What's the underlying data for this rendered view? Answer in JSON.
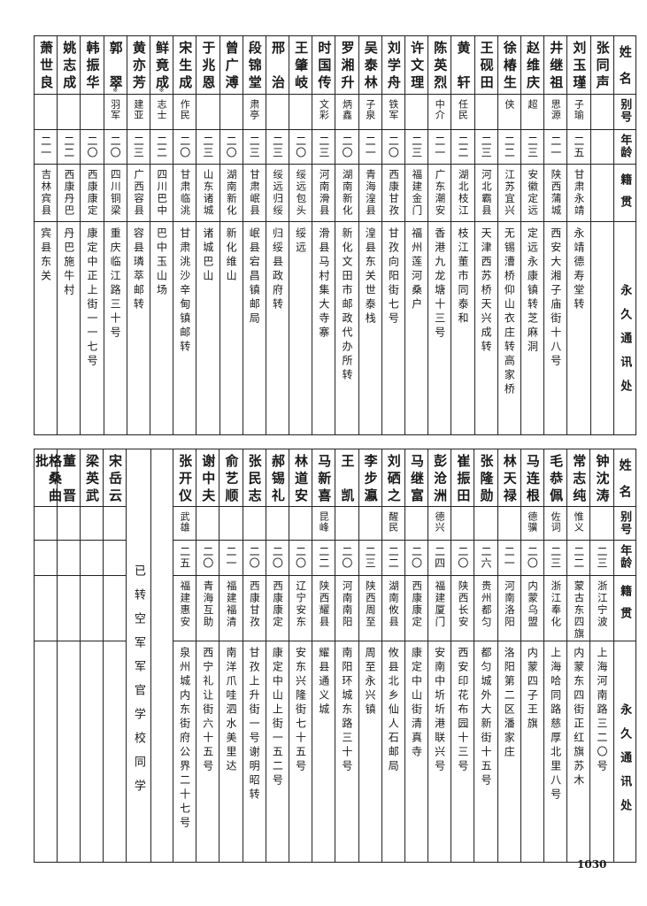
{
  "headers": {
    "name": "姓名",
    "alias": "别号",
    "age": "年龄",
    "native": "籍贯",
    "address": "永久通讯处"
  },
  "top": {
    "people": [
      {
        "name": "张同声",
        "alias": "",
        "age": "",
        "native": "",
        "address": ""
      },
      {
        "name": "刘玉瑾",
        "alias": "子瑜",
        "age": "二五",
        "native": "甘肃永靖",
        "address": "永靖德寿堂转"
      },
      {
        "name": "井继祖",
        "alias": "思源",
        "age": "二一",
        "native": "陕西蒲城",
        "address": "西安大湘子庙街十八号"
      },
      {
        "name": "赵维庆",
        "alias": "超",
        "age": "二三",
        "native": "安徽定远",
        "address": "定远永康镇转芝麻洞"
      },
      {
        "name": "徐椿生",
        "alias": "侠",
        "age": "二二",
        "native": "江苏宜兴",
        "address": "无锡漕桥仰山衣庄转高家桥"
      },
      {
        "name": "王砚田",
        "alias": "",
        "age": "二三",
        "native": "河北霸县",
        "address": "天津西苏桥天兴成转"
      },
      {
        "name": "黄轩",
        "alias": "任民",
        "age": "二二",
        "native": "湖北枝江",
        "address": "枝江董市同泰和"
      },
      {
        "name": "陈英烈",
        "alias": "中介",
        "age": "二一",
        "native": "广东潮安",
        "address": "香港九龙塘十三号"
      },
      {
        "name": "许文理",
        "alias": "",
        "age": "二三",
        "native": "福建金门",
        "address": "福州莲河桑户"
      },
      {
        "name": "刘学舟",
        "alias": "铁军",
        "age": "二〇",
        "native": "西康甘孜",
        "address": "甘孜向阳街七号"
      },
      {
        "name": "吴泰林",
        "alias": "子泉",
        "age": "二一",
        "native": "青海湟县",
        "address": "湟县东关世泰栈"
      },
      {
        "name": "罗湘升",
        "alias": "炳鑫",
        "age": "二〇",
        "native": "湖南新化",
        "address": "新化文田市邮政代办所转"
      },
      {
        "name": "时国传",
        "alias": "文彩",
        "age": "二三",
        "native": "河南滑县",
        "address": "滑县马村集大寺寨"
      },
      {
        "name": "王肇岐",
        "alias": "",
        "age": "二〇",
        "native": "绥远包头",
        "address": "绥远"
      },
      {
        "name": "邢治",
        "alias": "",
        "age": "二三",
        "native": "绥远归绥",
        "address": "归绥县政府转"
      },
      {
        "name": "段锦堂",
        "alias": "肃亭",
        "age": "二三",
        "native": "甘肃岷县",
        "address": "岷县宕昌镇邮局"
      },
      {
        "name": "曾广溥",
        "alias": "",
        "age": "二〇",
        "native": "湖南新化",
        "address": "新化维山"
      },
      {
        "name": "于兆恩",
        "alias": "",
        "age": "二三",
        "native": "山东诸城",
        "address": "诸城巴山"
      },
      {
        "name": "宋生成",
        "alias": "作民",
        "age": "二〇",
        "native": "甘肃临洮",
        "address": "甘肃洮沙辛甸镇邮转"
      },
      {
        "name": "鲜竟成",
        "mark": "※",
        "alias": "志士",
        "age": "二二",
        "native": "四川巴中",
        "address": "巴中玉山场"
      },
      {
        "name": "黄亦芳",
        "alias": "建亚",
        "age": "二三",
        "native": "广西容县",
        "address": "容县璘萃邮转"
      },
      {
        "name": "郭翠",
        "mark": "※",
        "alias": "羽军",
        "age": "二〇",
        "native": "四川铜梁",
        "address": "重庆临江路三十号"
      },
      {
        "name": "韩振华",
        "alias": "",
        "age": "二〇",
        "native": "西康康定",
        "address": "康定中正上街一一七号"
      },
      {
        "name": "姚志成",
        "alias": "",
        "age": "二二",
        "native": "西康丹巴",
        "address": "丹巴施牛村"
      },
      {
        "name": "萧世良",
        "alias": "",
        "age": "二一",
        "native": "吉林宾县",
        "address": "宾县东关"
      }
    ]
  },
  "bottom": {
    "people": [
      {
        "name": "钟沈涛",
        "alias": "",
        "age": "二三",
        "native": "浙江宁波",
        "address": "上海河南路三二〇号"
      },
      {
        "name": "常志纯",
        "alias": "惟义",
        "age": "二二",
        "native": "蒙古东四旗",
        "address": "内蒙东四街正红旗苏木"
      },
      {
        "name": "毛恭佩",
        "alias": "佐词",
        "age": "二三",
        "native": "浙江奉化",
        "address": "上海哈同路慈厚北里八号"
      },
      {
        "name": "马连根",
        "alias": "德骥",
        "age": "二〇",
        "native": "内蒙乌盟",
        "address": "内蒙四子王旗"
      },
      {
        "name": "林天禄",
        "alias": "",
        "age": "二一",
        "native": "河南洛阳",
        "address": "洛阳第二区潘家庄"
      },
      {
        "name": "张隆勋",
        "alias": "",
        "age": "二六",
        "native": "贵州都匀",
        "address": "都匀城外大新街十五号"
      },
      {
        "name": "崔振田",
        "alias": "",
        "age": "二〇",
        "native": "陕西长安",
        "address": "西安印花布园十三号"
      },
      {
        "name": "彭沧洲",
        "alias": "德兴",
        "age": "二四",
        "native": "福建厦门",
        "address": "安南中圻圻港联兴号"
      },
      {
        "name": "马继富",
        "alias": "",
        "age": "二〇",
        "native": "西康康定",
        "address": "康定中山街清真寺"
      },
      {
        "name": "刘硒之",
        "alias": "醒民",
        "age": "二二",
        "native": "湖南攸县",
        "address": "攸县北乡仙人石邮局"
      },
      {
        "name": "李步瀛",
        "alias": "",
        "age": "二三",
        "native": "陕西周至",
        "address": "周至永兴镇"
      },
      {
        "name": "王凯",
        "alias": "",
        "age": "二〇",
        "native": "河南南阳",
        "address": "南阳环城东路三十号"
      },
      {
        "name": "马新喜",
        "alias": "昆峰",
        "age": "二二",
        "native": "陕西耀县",
        "address": "耀县通义城"
      },
      {
        "name": "林道安",
        "alias": "",
        "age": "二〇",
        "native": "辽宁安东",
        "address": "安东兴隆街七十五号"
      },
      {
        "name": "郝锡礼",
        "alias": "",
        "age": "二〇",
        "native": "西康康定",
        "address": "康定中山上街一五二号"
      },
      {
        "name": "张民志",
        "alias": "",
        "age": "二〇",
        "native": "西康甘孜",
        "address": "甘孜上升街一号谢明昭转"
      },
      {
        "name": "俞艺顺",
        "alias": "",
        "age": "二一",
        "native": "福建福清",
        "address": "南洋爪哇泗水美里达"
      },
      {
        "name": "谢中夫",
        "alias": "",
        "age": "二〇",
        "native": "青海互助",
        "address": "西宁礼让街六十五号"
      },
      {
        "name": "张开仪",
        "alias": "武雄",
        "age": "二五",
        "native": "福建惠安",
        "address": "泉州城内东街府公界二十七号"
      }
    ],
    "note": "已转空军军官学校同学",
    "extra_names": [
      "宋岳云",
      "梁英武",
      "董晋",
      "格桑曲批"
    ]
  },
  "page_number": "1030"
}
